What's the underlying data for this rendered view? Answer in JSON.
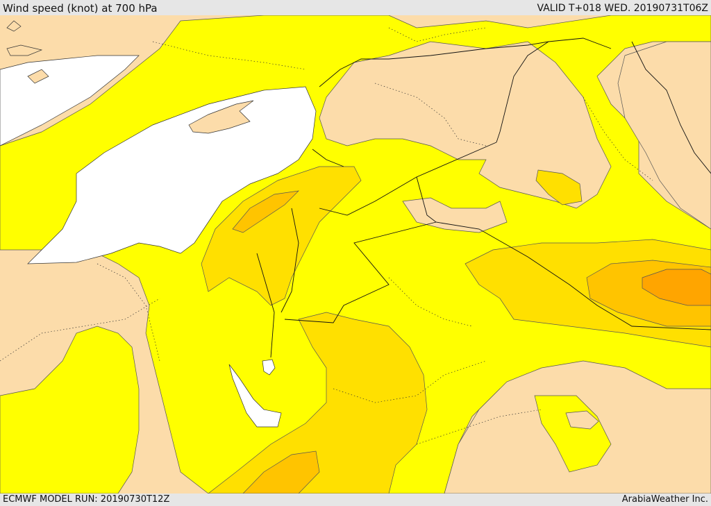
{
  "header": {
    "title": "Wind speed (knot) at 700 hPa",
    "valid": "VALID T+018 WED. 20190731T06Z"
  },
  "footer": {
    "model_run": "ECMWF MODEL RUN: 20190730T12Z",
    "credit": "ArabiaWeather Inc."
  },
  "colors": {
    "sea": "#ffffff",
    "tan": "#fcdcaa",
    "yellow": "#ffff00",
    "gold": "#ffe000",
    "orange": "#ffc400",
    "deep_orange": "#ffa500"
  }
}
